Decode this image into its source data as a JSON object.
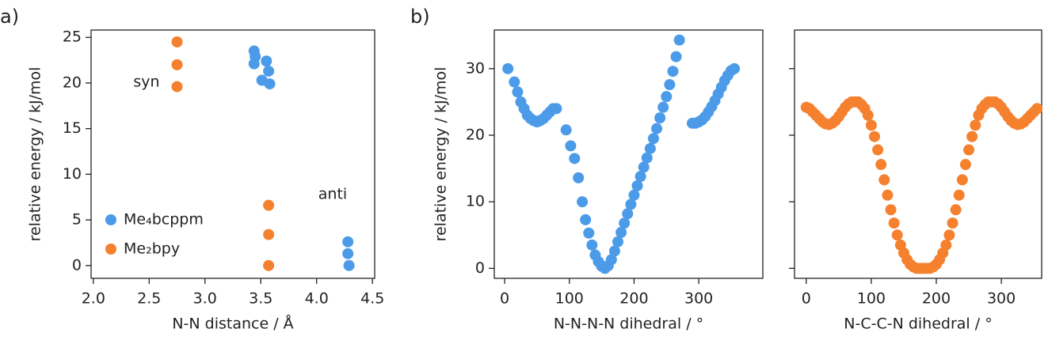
{
  "chart_data": [
    {
      "type": "scatter",
      "panel_label": "a)",
      "x_label": "N-N distance / Å",
      "y_label": "relative energy / kJ/mol",
      "xlim": [
        1.98,
        4.52
      ],
      "ylim": [
        -1.4,
        25.8
      ],
      "xticks": [
        {
          "value": 2,
          "label": "2.0"
        },
        {
          "value": 2.5,
          "label": "2.5"
        },
        {
          "value": 3,
          "label": "3.0"
        },
        {
          "value": 3.5,
          "label": "3.5"
        },
        {
          "value": 4,
          "label": "4.0"
        },
        {
          "value": 4.5,
          "label": "4.5"
        }
      ],
      "yticks": [
        0,
        5,
        10,
        15,
        20,
        25
      ],
      "legend": "lower left",
      "annotations": [
        "syn",
        "anti"
      ],
      "series": [
        {
          "name": "Me₄bcppm",
          "color": "#4c9be8",
          "x": [
            3.44,
            3.45,
            3.44,
            3.55,
            3.57,
            3.51,
            3.58,
            4.28,
            4.28,
            4.29
          ],
          "values": [
            23.5,
            22.9,
            22.1,
            22.4,
            21.3,
            20.3,
            19.9,
            2.6,
            1.3,
            0
          ]
        },
        {
          "name": "Me₂bpy",
          "color": "#f5812f",
          "x": [
            2.75,
            2.75,
            2.75,
            3.57,
            3.57,
            3.57
          ],
          "values": [
            24.5,
            22,
            19.6,
            6.6,
            3.4,
            0
          ]
        }
      ]
    },
    {
      "type": "scatter",
      "panel_label": "b)",
      "x_label": "N-N-N-N dihedral / °",
      "y_label": "relative energy / kJ/mol",
      "xlim": [
        -16,
        399
      ],
      "ylim": [
        -1.5,
        35.8
      ],
      "xticks": [
        0,
        100,
        200,
        300
      ],
      "yticks": [
        0,
        10,
        20,
        30
      ],
      "series": [
        {
          "color": "#4c9be8",
          "x": [
            5,
            15,
            20,
            25,
            30,
            35,
            40,
            45,
            50,
            55,
            60,
            65,
            70,
            75,
            80,
            95,
            102,
            108,
            114,
            120,
            125,
            130,
            135,
            140,
            145,
            150,
            155,
            160,
            165,
            170,
            175,
            180,
            185,
            190,
            195,
            200,
            205,
            210,
            215,
            220,
            225,
            230,
            235,
            240,
            245,
            250,
            255,
            260,
            265,
            270,
            290,
            295,
            300,
            305,
            310,
            315,
            320,
            325,
            330,
            335,
            340,
            345,
            350,
            355
          ],
          "values": [
            30,
            28,
            26.5,
            25,
            24,
            23,
            22.5,
            22.2,
            22,
            22.2,
            22.5,
            23,
            23.5,
            24,
            24,
            20.8,
            18.4,
            16.5,
            13.6,
            10,
            7.3,
            5.3,
            3.5,
            2,
            1,
            0.3,
            0,
            0.4,
            1.3,
            2.6,
            4,
            5.4,
            6.8,
            8.2,
            9.6,
            11,
            12.4,
            13.8,
            15.2,
            16.6,
            18,
            19.5,
            21,
            22.6,
            24.2,
            25.8,
            27.6,
            29.6,
            31.8,
            34.3,
            21.8,
            21.8,
            22,
            22.3,
            22.8,
            23.5,
            24.3,
            25.2,
            26.2,
            27.2,
            28.2,
            29,
            29.7,
            30
          ]
        }
      ]
    },
    {
      "type": "scatter",
      "x_label": "N-C-C-N dihedral / °",
      "xlim": [
        -18,
        362
      ],
      "ylim": [
        -1.5,
        35.8
      ],
      "xticks": [
        0,
        100,
        200,
        300
      ],
      "yticks": [
        0,
        10,
        20,
        30
      ],
      "ytick_labels": false,
      "series": [
        {
          "color": "#f5812f",
          "x": [
            0,
            5,
            10,
            15,
            20,
            25,
            30,
            35,
            40,
            45,
            50,
            55,
            60,
            65,
            70,
            75,
            80,
            85,
            90,
            95,
            100,
            105,
            110,
            115,
            120,
            125,
            130,
            135,
            140,
            145,
            150,
            155,
            160,
            165,
            170,
            175,
            180,
            185,
            190,
            195,
            200,
            205,
            210,
            215,
            220,
            225,
            230,
            235,
            240,
            245,
            250,
            255,
            260,
            265,
            270,
            275,
            280,
            285,
            290,
            295,
            300,
            305,
            310,
            315,
            320,
            325,
            330,
            335,
            340,
            345,
            350,
            355
          ],
          "values": [
            24.2,
            24,
            23.5,
            23,
            22.5,
            22,
            21.7,
            21.6,
            21.8,
            22.2,
            22.8,
            23.5,
            24.2,
            24.7,
            25,
            25,
            25,
            24.6,
            24,
            23,
            21.5,
            19.8,
            17.8,
            15.6,
            13.3,
            11,
            8.8,
            6.8,
            5,
            3.5,
            2.3,
            1.3,
            0.6,
            0.2,
            0,
            0,
            0,
            0,
            0,
            0.2,
            0.6,
            1.3,
            2.3,
            3.5,
            5,
            6.8,
            8.8,
            11,
            13.3,
            15.6,
            17.8,
            19.8,
            21.5,
            23,
            24,
            24.6,
            25,
            25,
            25,
            24.7,
            24.2,
            23.5,
            22.8,
            22.2,
            21.8,
            21.6,
            21.7,
            22,
            22.5,
            23,
            23.5,
            24
          ]
        }
      ]
    }
  ]
}
